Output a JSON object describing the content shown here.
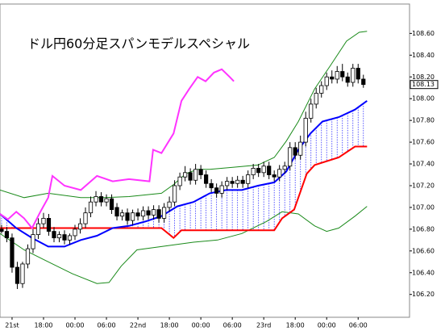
{
  "chart_data": {
    "type": "candlestick",
    "title": "ドル円60分足スパンモデルスペシャル",
    "x": [
      -2,
      -1,
      0,
      1,
      2,
      3,
      4,
      5,
      6,
      7,
      8,
      9,
      10,
      11,
      12,
      13,
      14,
      15,
      16,
      17,
      18,
      19,
      20,
      21,
      22,
      23,
      24,
      25,
      26,
      27,
      28,
      29,
      30,
      31,
      32,
      33,
      34,
      35,
      36,
      37,
      38,
      39,
      40,
      41,
      42,
      43,
      44,
      45,
      46,
      47,
      48,
      49,
      50,
      51,
      52,
      53,
      54,
      55,
      56,
      57,
      58,
      59,
      60,
      61,
      62,
      63,
      64,
      65,
      66,
      67
    ],
    "open": [
      106.8,
      106.78,
      106.72,
      106.45,
      106.3,
      106.48,
      106.62,
      106.75,
      106.85,
      106.9,
      106.78,
      106.72,
      106.75,
      106.7,
      106.74,
      106.8,
      106.85,
      106.95,
      107.05,
      107.1,
      107.05,
      107.08,
      107.0,
      106.92,
      106.95,
      106.88,
      106.95,
      106.92,
      106.97,
      106.93,
      106.98,
      106.9,
      107.0,
      107.05,
      107.2,
      107.28,
      107.32,
      107.25,
      107.35,
      107.3,
      107.22,
      107.18,
      107.13,
      107.2,
      107.24,
      107.22,
      107.25,
      107.22,
      107.3,
      107.36,
      107.32,
      107.38,
      107.3,
      107.28,
      107.35,
      107.38,
      107.55,
      107.48,
      107.6,
      107.82,
      107.95,
      108.05,
      108.12,
      108.2,
      108.18,
      108.25,
      108.2,
      108.15,
      108.28,
      108.18
    ],
    "high": [
      106.84,
      106.82,
      106.76,
      106.5,
      106.5,
      106.66,
      106.8,
      106.9,
      106.95,
      106.94,
      106.82,
      106.78,
      106.79,
      106.76,
      106.84,
      106.9,
      107.0,
      107.1,
      107.15,
      107.14,
      107.12,
      107.12,
      107.04,
      106.98,
      106.99,
      106.98,
      106.99,
      107.01,
      107.01,
      107.02,
      107.02,
      107.04,
      107.1,
      107.25,
      107.32,
      107.38,
      107.36,
      107.4,
      107.39,
      107.34,
      107.26,
      107.22,
      107.24,
      107.28,
      107.28,
      107.29,
      107.29,
      107.34,
      107.4,
      107.4,
      107.42,
      107.42,
      107.34,
      107.39,
      107.42,
      107.6,
      107.6,
      107.66,
      107.88,
      108.0,
      108.1,
      108.16,
      108.24,
      108.26,
      108.3,
      108.32,
      108.24,
      108.32,
      108.32,
      108.22
    ],
    "low": [
      106.76,
      106.68,
      106.4,
      106.25,
      106.26,
      106.44,
      106.58,
      106.71,
      106.81,
      106.74,
      106.68,
      106.68,
      106.66,
      106.66,
      106.7,
      106.76,
      106.81,
      106.91,
      107.01,
      107.01,
      107.01,
      106.94,
      106.88,
      106.88,
      106.84,
      106.84,
      106.88,
      106.88,
      106.89,
      106.89,
      106.86,
      106.86,
      106.96,
      107.01,
      107.16,
      107.24,
      107.21,
      107.21,
      107.26,
      107.18,
      107.14,
      107.09,
      107.09,
      107.16,
      107.18,
      107.18,
      107.18,
      107.18,
      107.26,
      107.28,
      107.28,
      107.26,
      107.24,
      107.24,
      107.31,
      107.34,
      107.44,
      107.44,
      107.56,
      107.78,
      107.91,
      108.01,
      108.08,
      108.14,
      108.14,
      108.16,
      108.11,
      108.11,
      108.14,
      108.1
    ],
    "close": [
      106.78,
      106.72,
      106.45,
      106.3,
      106.48,
      106.62,
      106.75,
      106.85,
      106.9,
      106.78,
      106.72,
      106.75,
      106.7,
      106.74,
      106.8,
      106.85,
      106.95,
      107.05,
      107.1,
      107.05,
      107.08,
      106.98,
      106.92,
      106.95,
      106.88,
      106.95,
      106.92,
      106.97,
      106.93,
      106.98,
      106.9,
      107.0,
      107.05,
      107.2,
      107.28,
      107.32,
      107.25,
      107.35,
      107.3,
      107.22,
      107.18,
      107.13,
      107.2,
      107.24,
      107.22,
      107.25,
      107.22,
      107.3,
      107.36,
      107.32,
      107.38,
      107.3,
      107.28,
      107.35,
      107.38,
      107.55,
      107.48,
      107.6,
      107.82,
      107.95,
      108.05,
      108.12,
      108.2,
      108.18,
      108.25,
      108.2,
      108.15,
      108.28,
      108.18,
      108.13
    ],
    "up_color": "#ffffff",
    "down_color": "#000000",
    "lines": [
      {
        "color": "#1a8a1a",
        "x": [
          -2.3,
          2.3,
          6.9,
          13.1,
          17.7,
          22.3,
          28.5,
          30.8,
          33.1,
          35.4,
          37.7,
          42.3,
          46.9,
          50,
          52.3,
          54.6,
          57.7,
          60.8,
          63.8,
          66.2,
          67.7
        ],
        "values": [
          107.16,
          107.09,
          107.13,
          107.09,
          107.09,
          107.1,
          107.13,
          107.21,
          107.31,
          107.35,
          107.35,
          107.37,
          107.39,
          107.46,
          107.61,
          107.79,
          108.09,
          108.31,
          108.53,
          108.61,
          108.62
        ]
      },
      {
        "color": "#1a8a1a",
        "x": [
          -2.3,
          2.3,
          6.9,
          11.5,
          16.2,
          18.5,
          20.8,
          23.8,
          28.5,
          34.6,
          39.2,
          43.8,
          48.5,
          51.5,
          54.6,
          57.7,
          60,
          62.3,
          65.4,
          67.7
        ],
        "values": [
          106.76,
          106.61,
          106.5,
          106.39,
          106.3,
          106.31,
          106.46,
          106.61,
          106.64,
          106.68,
          106.7,
          106.76,
          106.87,
          106.96,
          106.94,
          106.83,
          106.78,
          106.81,
          106.92,
          107.01
        ]
      },
      {
        "color": "#ff0000",
        "x": [
          -2.3,
          28.5,
          30.8,
          32.3,
          50,
          51.5,
          53.8,
          56.2,
          57.7,
          62.3,
          65.4,
          67.7
        ],
        "values": [
          106.81,
          106.81,
          106.72,
          106.79,
          106.79,
          106.9,
          106.98,
          107.31,
          107.39,
          107.46,
          107.56,
          107.56
        ]
      },
      {
        "color": "#0000ff",
        "x": [
          -2.3,
          0.8,
          3.8,
          6.9,
          10,
          13.1,
          16.2,
          19.2,
          22.3,
          25.4,
          28.5,
          31.5,
          34.6,
          37.7,
          40.8,
          43.8,
          46.9,
          50,
          52.3,
          54.6,
          56.9,
          59.2,
          62.3,
          65.4,
          67.7
        ],
        "values": [
          106.94,
          106.81,
          106.72,
          106.64,
          106.64,
          106.7,
          106.74,
          106.81,
          106.83,
          106.87,
          106.92,
          107.01,
          107.05,
          107.13,
          107.16,
          107.16,
          107.2,
          107.23,
          107.33,
          107.53,
          107.68,
          107.79,
          107.83,
          107.9,
          107.98
        ]
      },
      {
        "color": "#ff33ff",
        "x": [
          -2.3,
          -0.8,
          0.8,
          2.3,
          3.8,
          5.4,
          6.9,
          7.7,
          10,
          13.1,
          16.2,
          19.2,
          22.3,
          26.2,
          26.9,
          28.5,
          30.8,
          32.3,
          33.8,
          35.4,
          36.9,
          38.5,
          40,
          41.5,
          42.3
        ],
        "values": [
          106.94,
          106.89,
          106.96,
          106.9,
          106.81,
          106.96,
          107.09,
          107.29,
          107.2,
          107.16,
          107.29,
          107.24,
          107.26,
          107.24,
          107.53,
          107.5,
          107.68,
          107.98,
          108.09,
          108.2,
          108.16,
          108.24,
          108.27,
          108.2,
          108.16
        ]
      }
    ],
    "last_price": 108.13,
    "xlim": [
      -2.3,
      75.8
    ],
    "xticks": [
      {
        "value": 0,
        "label": "21st"
      },
      {
        "value": 6,
        "label": "18:00"
      },
      {
        "value": 12,
        "label": "00:00"
      },
      {
        "value": 18,
        "label": "06:00"
      },
      {
        "value": 24,
        "label": "22nd"
      },
      {
        "value": 30,
        "label": "18:00"
      },
      {
        "value": 36,
        "label": "00:00"
      },
      {
        "value": 42,
        "label": "06:00"
      },
      {
        "value": 48,
        "label": "23rd"
      },
      {
        "value": 54,
        "label": "18:00"
      },
      {
        "value": 60,
        "label": "00:00"
      },
      {
        "value": 66,
        "label": "06:00"
      }
    ],
    "ylim": [
      105.99,
      108.87
    ],
    "yticks": [
      {
        "value": 106.2,
        "label": "106.20"
      },
      {
        "value": 106.4,
        "label": "106.40"
      },
      {
        "value": 106.6,
        "label": "106.60"
      },
      {
        "value": 106.8,
        "label": "106.80"
      },
      {
        "value": 107.0,
        "label": "107.00"
      },
      {
        "value": 107.2,
        "label": "107.20"
      },
      {
        "value": 107.4,
        "label": "107.40"
      },
      {
        "value": 107.6,
        "label": "107.60"
      },
      {
        "value": 107.8,
        "label": "107.80"
      },
      {
        "value": 108.0,
        "label": "108.00"
      },
      {
        "value": 108.2,
        "label": "108.20"
      },
      {
        "value": 108.4,
        "label": "108.40"
      },
      {
        "value": 108.6,
        "label": "108.60"
      }
    ]
  }
}
